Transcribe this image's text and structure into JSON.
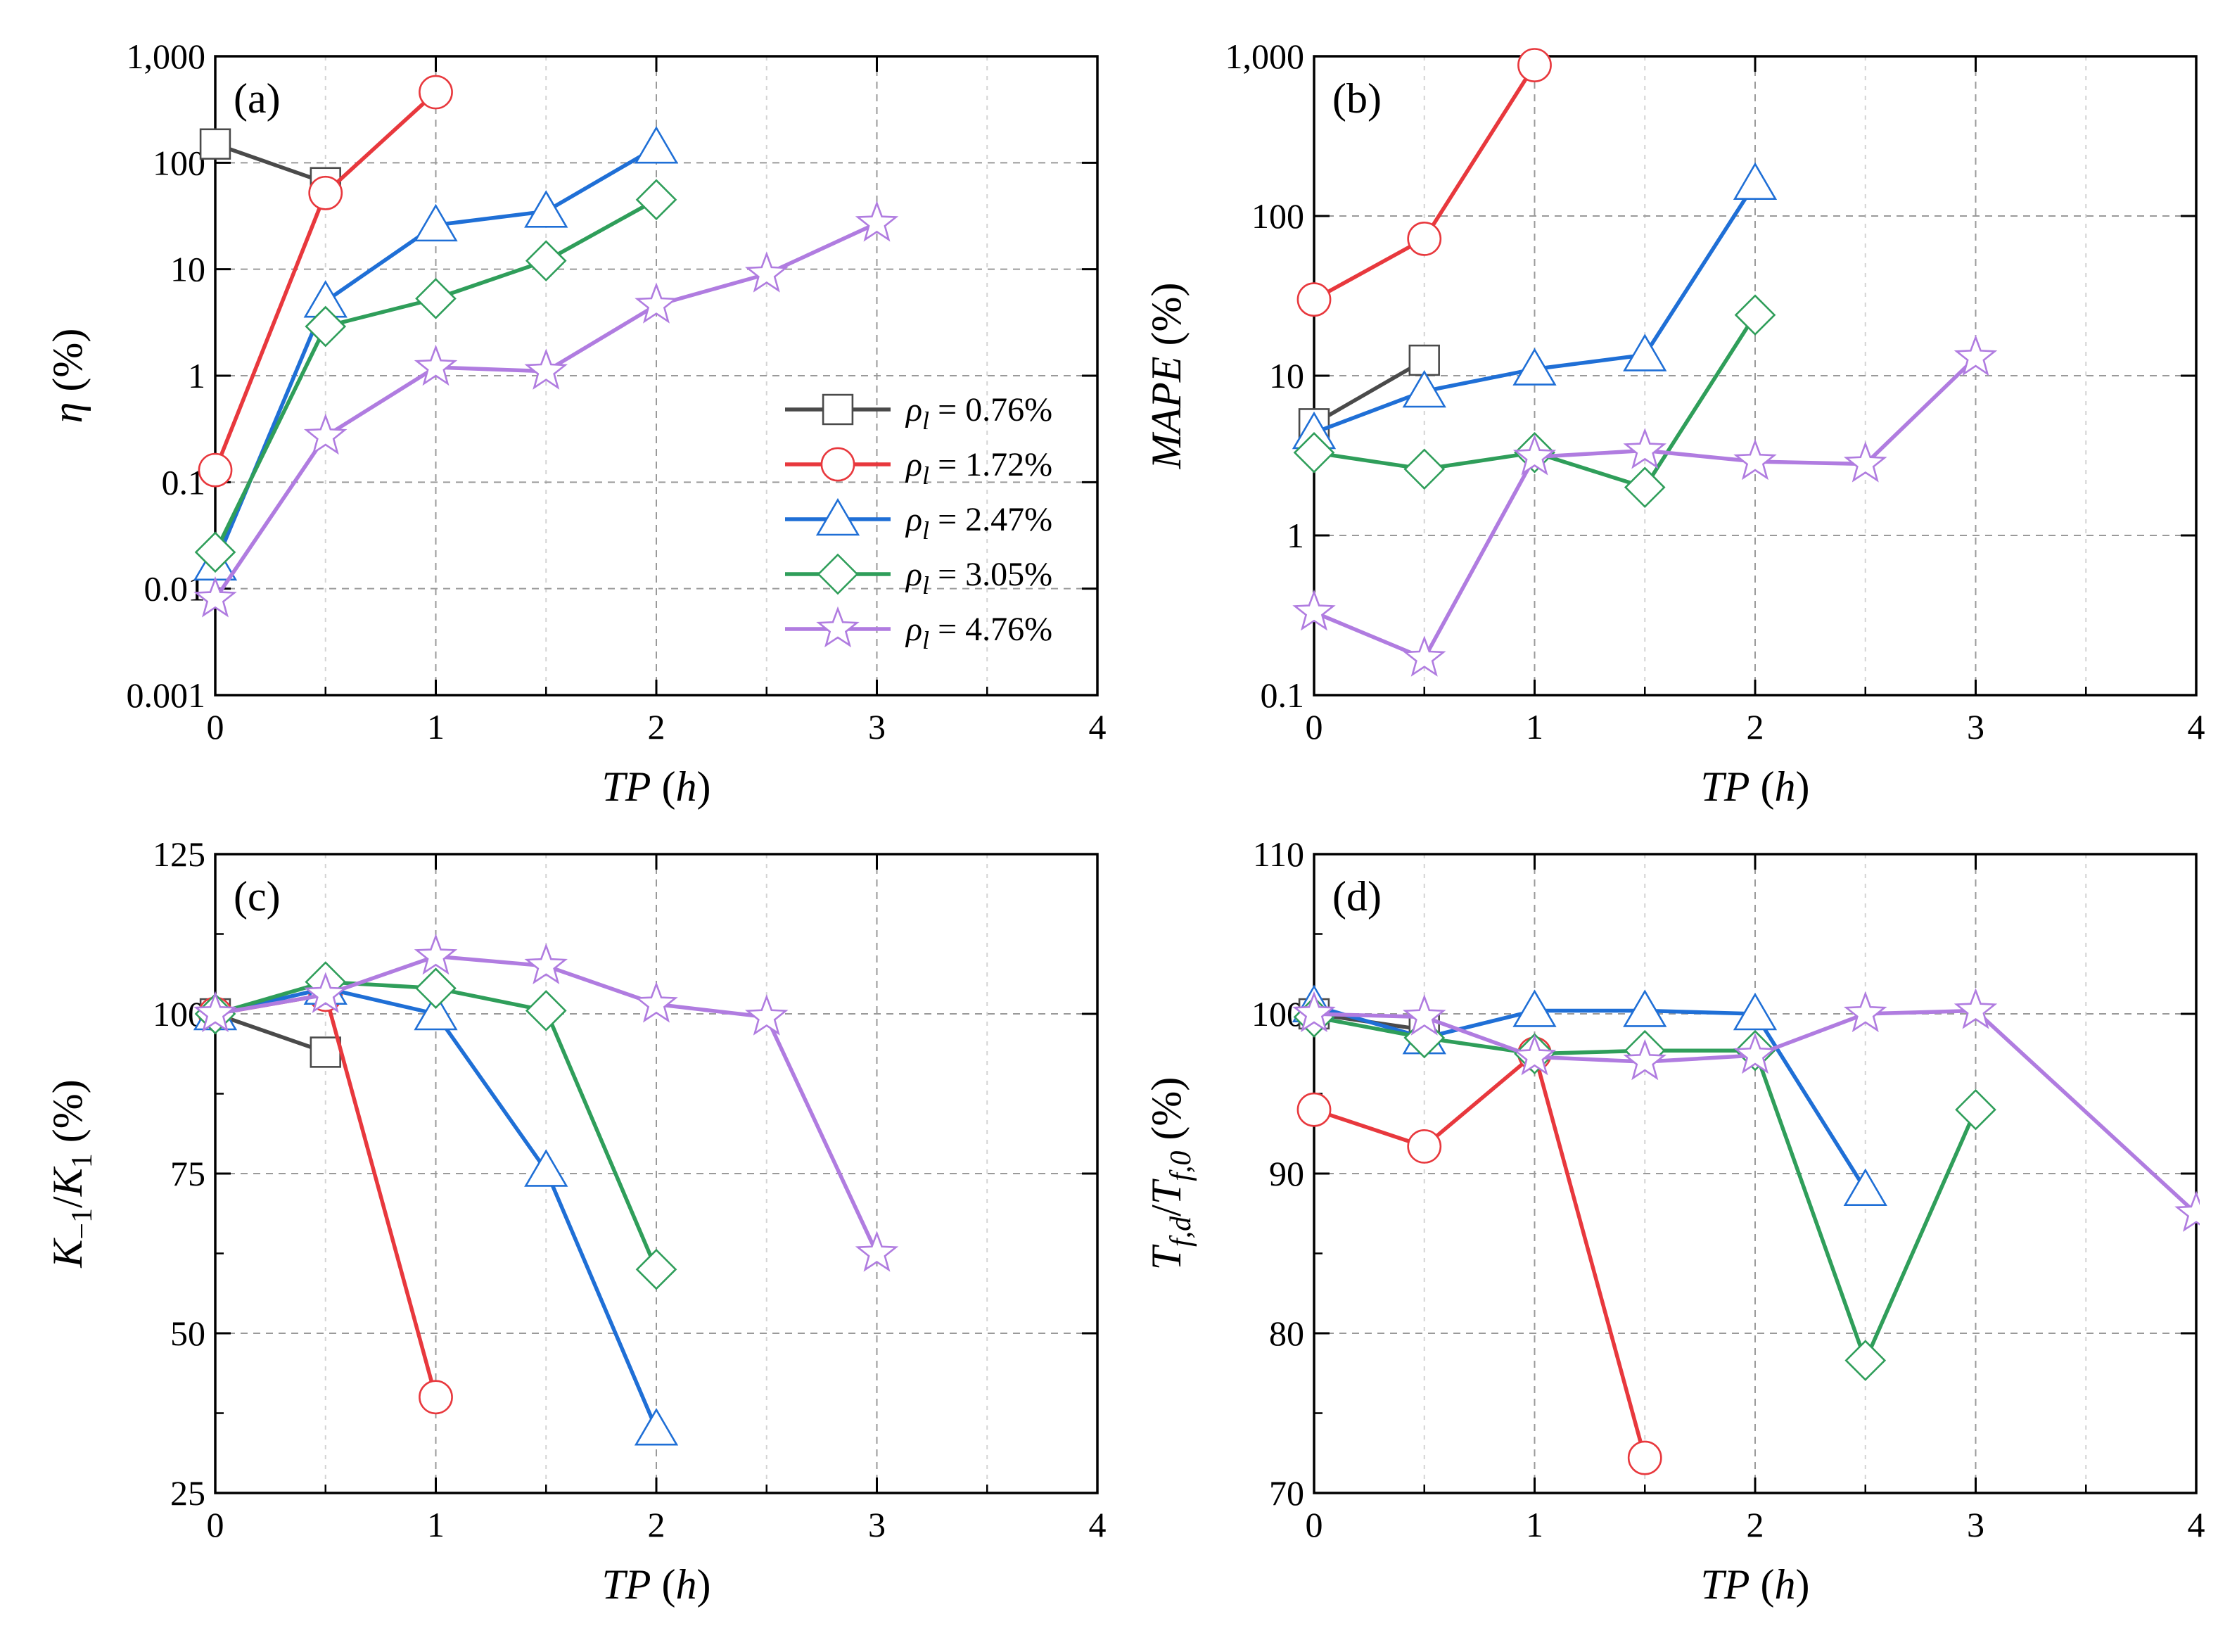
{
  "series_styles": [
    {
      "key": "s076",
      "color": "#4a4a4a",
      "marker": "square"
    },
    {
      "key": "s172",
      "color": "#e8383d",
      "marker": "circle"
    },
    {
      "key": "s247",
      "color": "#1f6fd6",
      "marker": "triangle"
    },
    {
      "key": "s305",
      "color": "#2f9e5a",
      "marker": "diamond"
    },
    {
      "key": "s476",
      "color": "#b07ce0",
      "marker": "star"
    }
  ],
  "legend": {
    "symbol": "ρ",
    "subscript": "l",
    "entries": [
      " = 0.76%",
      " = 1.72%",
      " = 2.47%",
      " = 3.05%",
      " = 4.76%"
    ]
  },
  "chart_data": [
    {
      "panel": "(a)",
      "type": "line",
      "xlabel": "TP (h)",
      "ylabel": "η (%)",
      "yscale": "log",
      "xlim": [
        0,
        4
      ],
      "ylim": [
        0.001,
        1000
      ],
      "xticks": [
        "0",
        "1",
        "2",
        "3",
        "4"
      ],
      "yticks": [
        "0.001",
        "0.01",
        "0.1",
        "1",
        "10",
        "100",
        "1,000"
      ],
      "legend_placement": "right",
      "series": [
        {
          "name": "ρl = 0.76%",
          "x": [
            0,
            0.5
          ],
          "y": [
            150,
            65
          ]
        },
        {
          "name": "ρl = 1.72%",
          "x": [
            0,
            0.5,
            1
          ],
          "y": [
            0.13,
            52,
            460
          ]
        },
        {
          "name": "ρl = 2.47%",
          "x": [
            0,
            0.5,
            1,
            1.5,
            2
          ],
          "y": [
            0.017,
            5,
            26,
            35,
            140
          ]
        },
        {
          "name": "ρl = 3.05%",
          "x": [
            0,
            0.5,
            1,
            1.5,
            2
          ],
          "y": [
            0.022,
            2.9,
            5.3,
            12,
            45
          ]
        },
        {
          "name": "ρl = 4.76%",
          "x": [
            0,
            0.5,
            1,
            1.5,
            2,
            2.5,
            3
          ],
          "y": [
            0.008,
            0.27,
            1.2,
            1.1,
            4.6,
            9,
            27
          ]
        }
      ]
    },
    {
      "panel": "(b)",
      "type": "line",
      "xlabel": "TP (h)",
      "ylabel": "MAPE (%)",
      "yscale": "log",
      "xlim": [
        0,
        4
      ],
      "ylim": [
        0.1,
        1000
      ],
      "xticks": [
        "0",
        "1",
        "2",
        "3",
        "4"
      ],
      "yticks": [
        "0.1",
        "1",
        "10",
        "100",
        "1,000"
      ],
      "series": [
        {
          "name": "ρl = 0.76%",
          "x": [
            0,
            0.5
          ],
          "y": [
            5,
            12.5
          ]
        },
        {
          "name": "ρl = 1.72%",
          "x": [
            0,
            0.5,
            1
          ],
          "y": [
            30,
            72,
            880
          ]
        },
        {
          "name": "ρl = 2.47%",
          "x": [
            0,
            0.5,
            1,
            1.5,
            2
          ],
          "y": [
            4.4,
            8,
            11,
            13.5,
            160
          ]
        },
        {
          "name": "ρl = 3.05%",
          "x": [
            0,
            0.5,
            1,
            1.5,
            2
          ],
          "y": [
            3.3,
            2.6,
            3.3,
            2,
            24
          ]
        },
        {
          "name": "ρl = 4.76%",
          "x": [
            0,
            0.5,
            1,
            1.5,
            2,
            2.5,
            3
          ],
          "y": [
            0.33,
            0.17,
            3.1,
            3.4,
            2.9,
            2.8,
            13
          ]
        }
      ]
    },
    {
      "panel": "(c)",
      "type": "line",
      "xlabel": "TP (h)",
      "ylabel": "K−1/K1 (%)",
      "yscale": "linear",
      "xlim": [
        0,
        4
      ],
      "ylim": [
        25,
        125
      ],
      "xticks": [
        "0",
        "1",
        "2",
        "3",
        "4"
      ],
      "yticks": [
        "25",
        "50",
        "75",
        "100",
        "125"
      ],
      "series": [
        {
          "name": "ρl = 0.76%",
          "x": [
            0,
            0.5
          ],
          "y": [
            100,
            94
          ]
        },
        {
          "name": "ρl = 1.72%",
          "x": [
            0,
            0.5,
            1
          ],
          "y": [
            100,
            103,
            40
          ]
        },
        {
          "name": "ρl = 2.47%",
          "x": [
            0,
            0.5,
            1,
            1.5,
            2
          ],
          "y": [
            100,
            104,
            100,
            75.5,
            35
          ]
        },
        {
          "name": "ρl = 3.05%",
          "x": [
            0,
            0.5,
            1,
            1.5,
            2
          ],
          "y": [
            100,
            105,
            104,
            100.5,
            60
          ]
        },
        {
          "name": "ρl = 4.76%",
          "x": [
            0,
            0.5,
            1,
            1.5,
            2,
            2.5,
            3
          ],
          "y": [
            100,
            103,
            109,
            107.5,
            101.5,
            99.5,
            62.5
          ]
        }
      ]
    },
    {
      "panel": "(d)",
      "type": "line",
      "xlabel": "TP (h)",
      "ylabel": "Tf,d/Tf,0 (%)",
      "yscale": "linear",
      "xlim": [
        0,
        4
      ],
      "ylim": [
        70,
        110
      ],
      "xticks": [
        "0",
        "1",
        "2",
        "3",
        "4"
      ],
      "yticks": [
        "70",
        "80",
        "90",
        "100",
        "110"
      ],
      "series": [
        {
          "name": "ρl = 0.76%",
          "x": [
            0,
            0.5
          ],
          "y": [
            100,
            99
          ]
        },
        {
          "name": "ρl = 1.72%",
          "x": [
            0,
            0.5,
            1,
            1.5
          ],
          "y": [
            94,
            91.7,
            97.5,
            72.2
          ]
        },
        {
          "name": "ρl = 2.47%",
          "x": [
            0,
            0.5,
            1,
            1.5,
            2,
            2.5
          ],
          "y": [
            100.5,
            98.5,
            100.2,
            100.2,
            100,
            89
          ]
        },
        {
          "name": "ρl = 3.05%",
          "x": [
            0,
            0.5,
            1,
            1.5,
            2,
            2.5,
            3
          ],
          "y": [
            99.8,
            98.5,
            97.5,
            97.7,
            97.7,
            78.3,
            94
          ]
        },
        {
          "name": "ρl = 4.76%",
          "x": [
            0,
            0.5,
            1,
            1.5,
            2,
            2.5,
            3,
            4
          ],
          "y": [
            100,
            99.8,
            97.3,
            97,
            97.4,
            100,
            100.2,
            87.5
          ]
        }
      ]
    }
  ]
}
